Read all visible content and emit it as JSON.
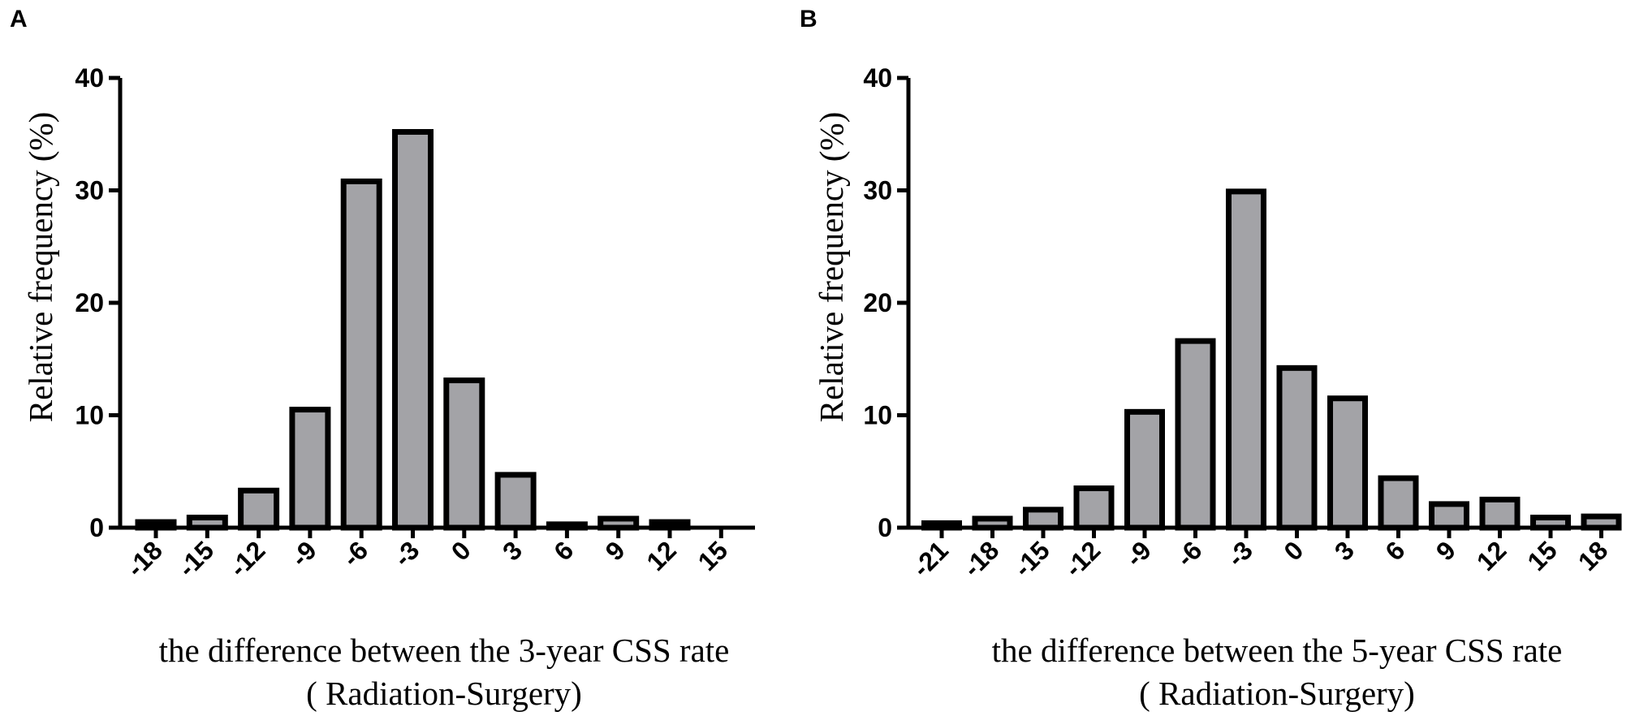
{
  "chart_data": [
    {
      "panel": "A",
      "type": "bar",
      "categories": [
        "-18",
        "-15",
        "-12",
        "-9",
        "-6",
        "-3",
        "0",
        "3",
        "6",
        "9",
        "12",
        "15"
      ],
      "values": [
        0.5,
        0.9,
        3.3,
        10.5,
        30.8,
        35.2,
        13.1,
        4.7,
        0.3,
        0.8,
        0.5,
        0
      ],
      "ylabel": "Relative frequency (%)",
      "xlabel_line1": "the difference between the 3-year CSS rate",
      "xlabel_line2": "( Radiation-Surgery)",
      "ylim": [
        0,
        40
      ],
      "yticks": [
        "0",
        "10",
        "20",
        "30",
        "40"
      ]
    },
    {
      "panel": "B",
      "type": "bar",
      "categories": [
        "-21",
        "-18",
        "-15",
        "-12",
        "-9",
        "-6",
        "-3",
        "0",
        "3",
        "6",
        "9",
        "12",
        "15",
        "18"
      ],
      "values": [
        0.4,
        0.8,
        1.6,
        3.5,
        10.3,
        16.6,
        29.9,
        14.2,
        11.5,
        4.4,
        2.1,
        2.5,
        0.9,
        1.0
      ],
      "ylabel": "Relative frequency (%)",
      "xlabel_line1": "the difference between the 5-year CSS rate",
      "xlabel_line2": "( Radiation-Surgery)",
      "ylim": [
        0,
        40
      ],
      "yticks": [
        "0",
        "10",
        "20",
        "30",
        "40"
      ]
    }
  ]
}
